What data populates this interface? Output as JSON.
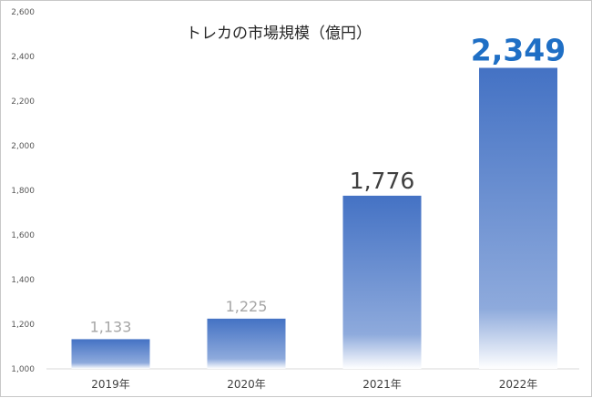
{
  "chart_data": {
    "type": "bar",
    "title": "トレカの市場規模（億円）",
    "xlabel": "",
    "ylabel": "",
    "categories": [
      "2019年",
      "2020年",
      "2021年",
      "2022年"
    ],
    "values": [
      1133,
      1225,
      1776,
      2349
    ],
    "value_labels": [
      "1,133",
      "1,225",
      "1,776",
      "2,349"
    ],
    "ylim": [
      1000,
      2600
    ],
    "yticks": [
      1000,
      1200,
      1400,
      1600,
      1800,
      2000,
      2200,
      2400,
      2600
    ],
    "ytick_labels": [
      "1,000",
      "1,200",
      "1,400",
      "1,600",
      "1,800",
      "2,000",
      "2,200",
      "2,400",
      "2,600"
    ],
    "grid": false,
    "legend": "none",
    "colors": {
      "bar_top": "#4472c4",
      "bar_bottom": "#ffffff",
      "label_small": "#a6a6a6",
      "label_mid": "#404040",
      "label_highlight": "#1f6fc5"
    }
  }
}
